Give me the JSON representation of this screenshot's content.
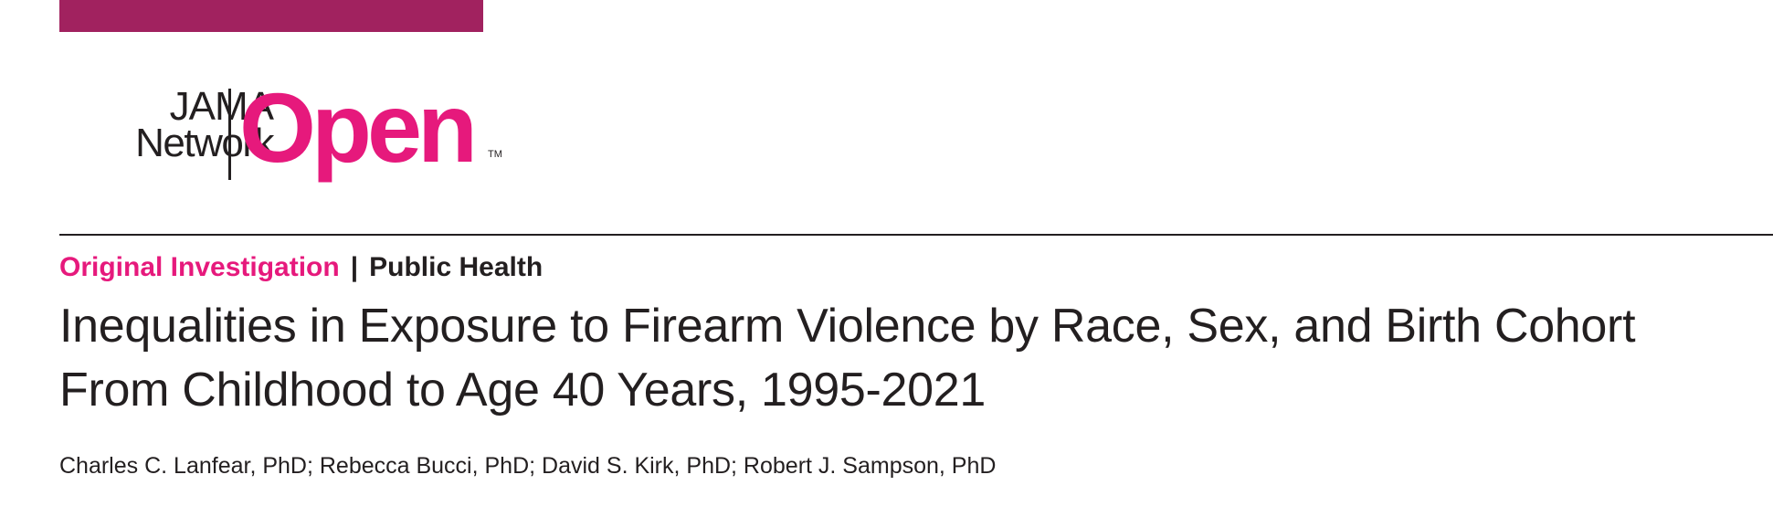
{
  "brand": {
    "bar_color": "#a1225f",
    "logo_line1": "JAMA",
    "logo_line2": "Network",
    "logo_word": "Open",
    "logo_tm": "TM",
    "logo_color": "#e6197c"
  },
  "article": {
    "type": "Original Investigation",
    "separator": "|",
    "subject": "Public Health",
    "title_line1": "Inequalities in Exposure to Firearm Violence by Race, Sex, and Birth Cohort",
    "title_line2": "From Childhood to Age 40 Years, 1995-2021",
    "authors": "Charles C. Lanfear, PhD; Rebecca Bucci, PhD; David S. Kirk, PhD; Robert J. Sampson, PhD"
  }
}
